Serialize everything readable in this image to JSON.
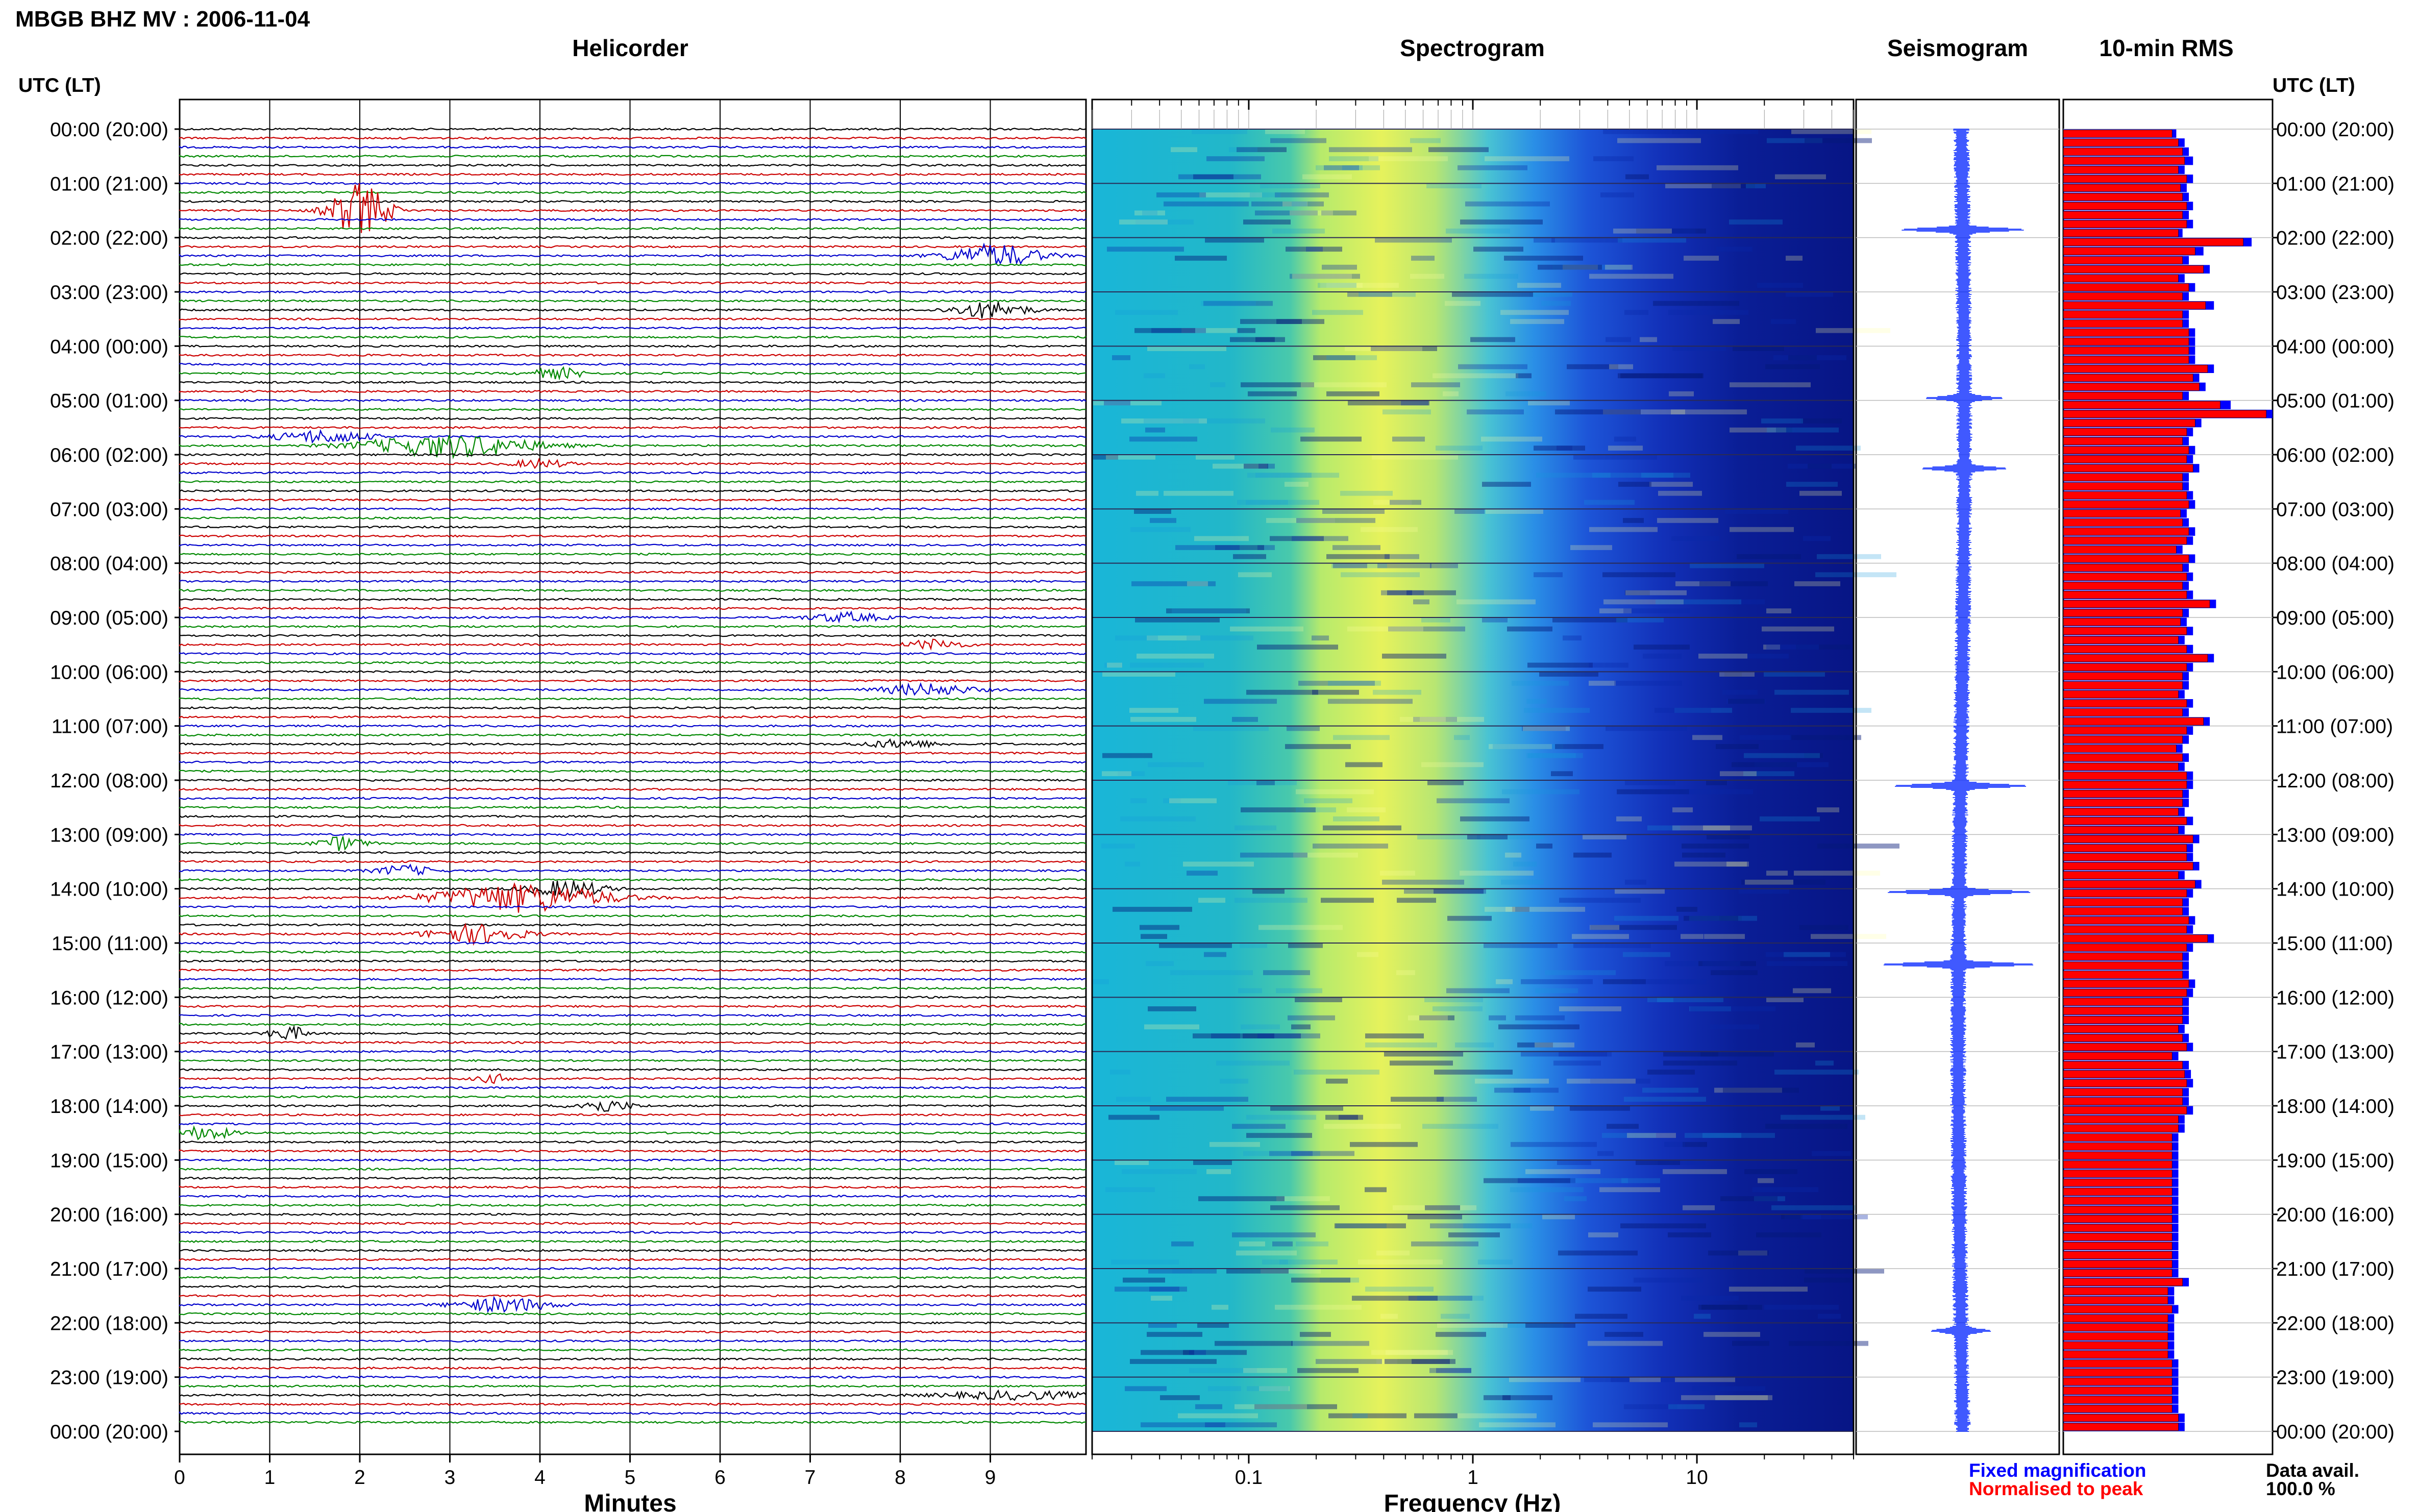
{
  "header": {
    "title": "MBGB BHZ MV : 2006-11-04",
    "utc_label_left": "UTC (LT)",
    "utc_label_right": "UTC (LT)"
  },
  "panels": {
    "helicorder": "Helicorder",
    "spectrogram": "Spectrogram",
    "seismogram": "Seismogram",
    "rms": "10-min RMS"
  },
  "axes": {
    "helicorder_xlabel": "Minutes",
    "spectrogram_xlabel": "Frequency (Hz)"
  },
  "legend": {
    "fixed": "Fixed magnification",
    "fixed_color": "#0000ff",
    "normalised": "Normalised to peak",
    "normalised_color": "#ff0000"
  },
  "availability": {
    "label": "Data avail.",
    "value": "100.0 %"
  },
  "chart_data": {
    "type": "helicorder",
    "time_labels": [
      "00:00 (20:00)",
      "01:00 (21:00)",
      "02:00 (22:00)",
      "03:00 (23:00)",
      "04:00 (00:00)",
      "05:00 (01:00)",
      "06:00 (02:00)",
      "07:00 (03:00)",
      "08:00 (04:00)",
      "09:00 (05:00)",
      "10:00 (06:00)",
      "11:00 (07:00)",
      "12:00 (08:00)",
      "13:00 (09:00)",
      "14:00 (10:00)",
      "15:00 (11:00)",
      "16:00 (12:00)",
      "17:00 (13:00)",
      "18:00 (14:00)",
      "19:00 (15:00)",
      "20:00 (16:00)",
      "21:00 (17:00)",
      "22:00 (18:00)",
      "23:00 (19:00)",
      "00:00 (20:00)"
    ],
    "minute_ticks": [
      "0",
      "1",
      "2",
      "3",
      "4",
      "5",
      "6",
      "7",
      "8",
      "9"
    ],
    "freq_ticks": [
      "0.1",
      "1",
      "10"
    ],
    "freq_range_hz": [
      0.02,
      50
    ],
    "trace_colors": [
      "#000000",
      "#cc0000",
      "#0000cc",
      "#008800"
    ],
    "traces_per_hour": 6,
    "rms_fixed": [
      0.54,
      0.58,
      0.6,
      0.62,
      0.58,
      0.62,
      0.59,
      0.6,
      0.62,
      0.6,
      0.62,
      0.57,
      0.9,
      0.67,
      0.6,
      0.7,
      0.58,
      0.63,
      0.6,
      0.72,
      0.6,
      0.6,
      0.63,
      0.63,
      0.63,
      0.63,
      0.72,
      0.65,
      0.68,
      0.6,
      0.8,
      1.0,
      0.66,
      0.62,
      0.6,
      0.63,
      0.62,
      0.65,
      0.6,
      0.6,
      0.62,
      0.63,
      0.59,
      0.6,
      0.63,
      0.62,
      0.57,
      0.63,
      0.6,
      0.62,
      0.6,
      0.62,
      0.73,
      0.6,
      0.59,
      0.62,
      0.58,
      0.62,
      0.72,
      0.62,
      0.6,
      0.6,
      0.58,
      0.62,
      0.6,
      0.7,
      0.62,
      0.6,
      0.57,
      0.6,
      0.58,
      0.62,
      0.62,
      0.6,
      0.6,
      0.58,
      0.62,
      0.58,
      0.65,
      0.62,
      0.62,
      0.65,
      0.58,
      0.66,
      0.62,
      0.6,
      0.6,
      0.63,
      0.62,
      0.72,
      0.62,
      0.6,
      0.6,
      0.6,
      0.63,
      0.62,
      0.6,
      0.6,
      0.6,
      0.58,
      0.6,
      0.62,
      0.55,
      0.6,
      0.61,
      0.62,
      0.6,
      0.6,
      0.62,
      0.58,
      0.58,
      0.55,
      0.55,
      0.55,
      0.55,
      0.55,
      0.55,
      0.55,
      0.55,
      0.55,
      0.55,
      0.55,
      0.55,
      0.55,
      0.55,
      0.55,
      0.55,
      0.6,
      0.53,
      0.53,
      0.55,
      0.53,
      0.53,
      0.53,
      0.53,
      0.53,
      0.55,
      0.55,
      0.55,
      0.55,
      0.55,
      0.55,
      0.58,
      0.58
    ],
    "rms_normalised": [
      0.52,
      0.55,
      0.57,
      0.58,
      0.55,
      0.59,
      0.56,
      0.57,
      0.59,
      0.57,
      0.59,
      0.55,
      0.86,
      0.63,
      0.57,
      0.67,
      0.55,
      0.6,
      0.57,
      0.68,
      0.57,
      0.57,
      0.6,
      0.6,
      0.6,
      0.6,
      0.69,
      0.62,
      0.65,
      0.57,
      0.75,
      0.97,
      0.63,
      0.59,
      0.57,
      0.6,
      0.59,
      0.62,
      0.57,
      0.57,
      0.59,
      0.6,
      0.56,
      0.57,
      0.6,
      0.59,
      0.54,
      0.6,
      0.57,
      0.59,
      0.57,
      0.59,
      0.7,
      0.57,
      0.56,
      0.59,
      0.55,
      0.59,
      0.69,
      0.59,
      0.57,
      0.57,
      0.55,
      0.59,
      0.57,
      0.67,
      0.59,
      0.57,
      0.54,
      0.57,
      0.55,
      0.59,
      0.59,
      0.57,
      0.57,
      0.55,
      0.59,
      0.55,
      0.62,
      0.59,
      0.59,
      0.62,
      0.55,
      0.63,
      0.59,
      0.57,
      0.57,
      0.6,
      0.59,
      0.69,
      0.59,
      0.57,
      0.57,
      0.57,
      0.6,
      0.59,
      0.57,
      0.57,
      0.57,
      0.55,
      0.57,
      0.59,
      0.52,
      0.57,
      0.58,
      0.59,
      0.57,
      0.57,
      0.59,
      0.55,
      0.55,
      0.52,
      0.52,
      0.52,
      0.52,
      0.52,
      0.52,
      0.52,
      0.52,
      0.52,
      0.52,
      0.52,
      0.52,
      0.52,
      0.52,
      0.52,
      0.52,
      0.57,
      0.5,
      0.5,
      0.52,
      0.5,
      0.5,
      0.5,
      0.5,
      0.5,
      0.52,
      0.52,
      0.52,
      0.52,
      0.52,
      0.52,
      0.55,
      0.55
    ]
  }
}
